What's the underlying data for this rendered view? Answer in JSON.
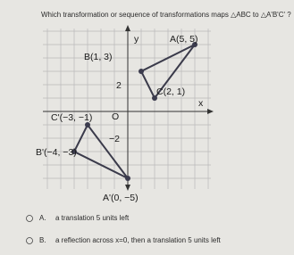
{
  "question": "Which transformation or sequence of transformations maps △ABC to △A'B'C' ?",
  "graph": {
    "y_axis_label": "y",
    "x_axis_label": "x",
    "origin_label": "O",
    "tick_positive": "2",
    "tick_negative": "−2",
    "points": [
      {
        "label": "A(5, 5)"
      },
      {
        "label": "B(1, 3)"
      },
      {
        "label": "C(2, 1)"
      },
      {
        "label": "C'(−3, −1)"
      },
      {
        "label": "B'(−4, −3)"
      },
      {
        "label": "A'(0, −5)"
      }
    ]
  },
  "options": [
    {
      "letter": "A.",
      "text": "a translation 5 units left"
    },
    {
      "letter": "B.",
      "text": "a reflection across x=0, then a translation 5 units left"
    }
  ]
}
